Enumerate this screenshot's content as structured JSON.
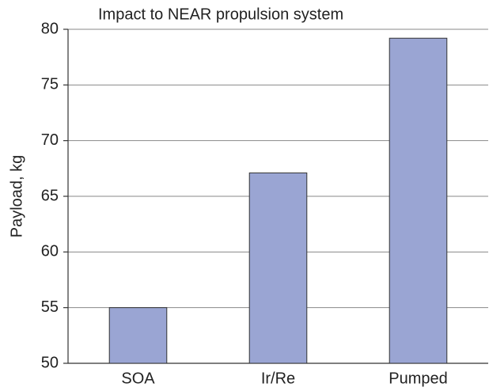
{
  "chart_data": {
    "type": "bar",
    "title": "Impact to NEAR propulsion system",
    "ylabel": "Payload, kg",
    "categories": [
      "SOA",
      "Ir/Re",
      "Pumped"
    ],
    "values": [
      55,
      67.1,
      79.2
    ],
    "color": "#9aa5d3",
    "ylim": [
      50,
      80
    ],
    "yticks": [
      50,
      55,
      60,
      65,
      70,
      75,
      80
    ],
    "grid": true
  }
}
